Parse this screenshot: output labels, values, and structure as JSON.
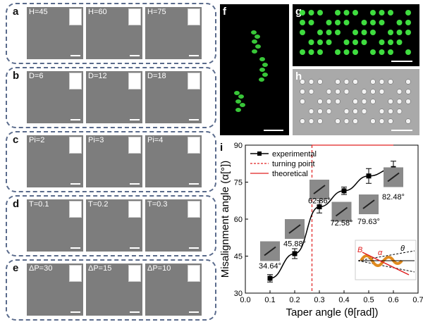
{
  "panels": {
    "a": {
      "label": "a",
      "params": [
        "H=45",
        "H=60",
        "H=75"
      ],
      "symbol": "H"
    },
    "b": {
      "label": "b",
      "params": [
        "D=6",
        "D=12",
        "D=18"
      ],
      "symbol": "D"
    },
    "c": {
      "label": "c",
      "params": [
        "Pi=2",
        "Pi=3",
        "Pi=4"
      ],
      "symbol": "Pi"
    },
    "d": {
      "label": "d",
      "params": [
        "T=0.1",
        "T=0.2",
        "T=0.3"
      ],
      "symbol": "T"
    },
    "e": {
      "label": "e",
      "params": [
        "ΔP=30",
        "ΔP=15",
        "ΔP=10"
      ],
      "symbol": "ΔP"
    },
    "f": {
      "label": "f"
    },
    "g": {
      "label": "g"
    },
    "h": {
      "label": "h"
    },
    "i": {
      "label": "i"
    }
  },
  "colors": {
    "green_fluor": "#3fdc3f",
    "sem_gray": "#7d7d7d",
    "orange": "#e08a1e",
    "blue_dash": "#3a8ad6",
    "theory_red": "#e02020"
  },
  "chart_data": {
    "type": "line",
    "xlabel": "Taper angle (θ[rad])",
    "ylabel": "Misalignment angle (α[°])",
    "xlim": [
      0.0,
      0.7
    ],
    "ylim": [
      30,
      90
    ],
    "xticks": [
      "0.0",
      "0.1",
      "0.2",
      "0.3",
      "0.4",
      "0.5",
      "0.6",
      "0.7"
    ],
    "yticks": [
      "30",
      "45",
      "60",
      "75",
      "90"
    ],
    "series": [
      {
        "name": "experimental",
        "x": [
          0.1,
          0.2,
          0.3,
          0.4,
          0.5,
          0.6
        ],
        "y": [
          36,
          46,
          65,
          71.5,
          77.5,
          80.5
        ],
        "err": [
          1.5,
          2,
          2.5,
          1.5,
          3,
          3
        ]
      },
      {
        "name": "theoretical",
        "x": [
          0.27,
          0.6
        ],
        "y": [
          90,
          90
        ]
      }
    ],
    "turning_point": {
      "name": "turning point",
      "x": 0.27
    },
    "data_labels": [
      "34.64°",
      "45.88°",
      "62.86°",
      "72.58°",
      "79.63°",
      "82.48°"
    ],
    "inset_labels": {
      "B": "B",
      "alpha": "α",
      "theta": "θ"
    },
    "legend": "top-right",
    "grid": false
  }
}
